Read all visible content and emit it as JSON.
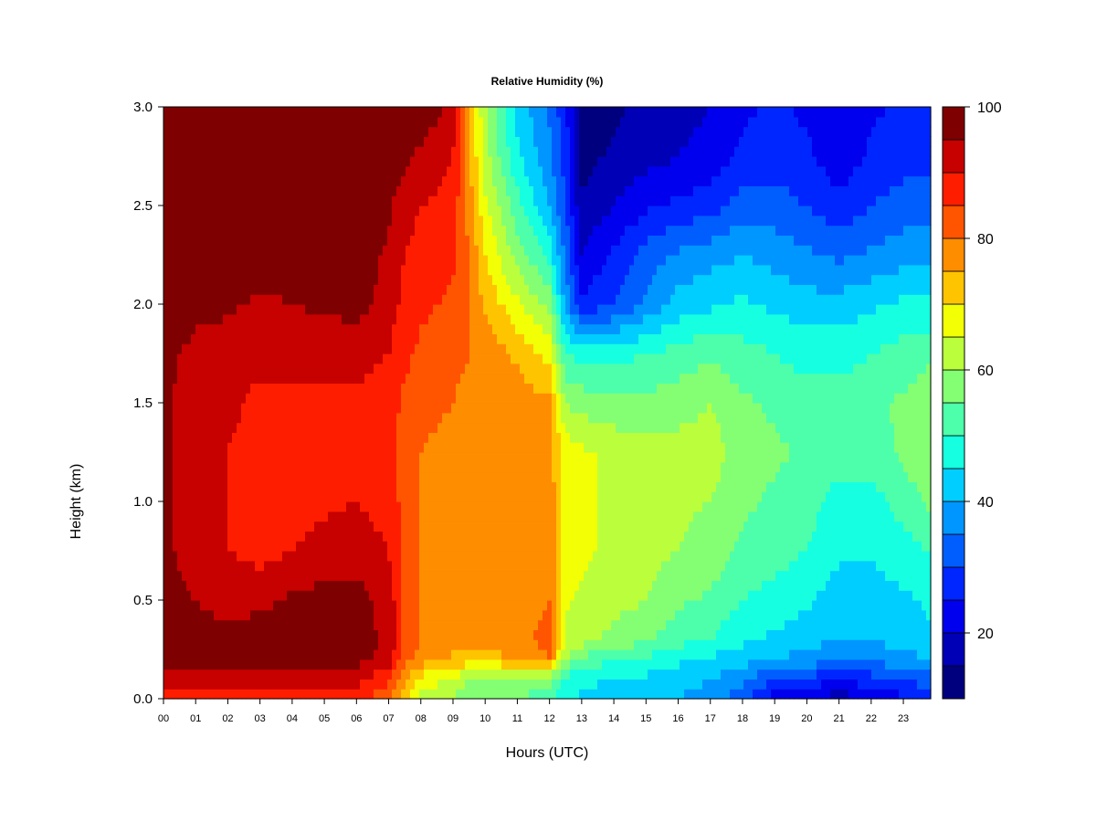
{
  "chart_data": {
    "type": "heatmap",
    "title": "Relative Humidity (%)",
    "xlabel": "Hours (UTC)",
    "ylabel": "Height (km)",
    "x_ticks": [
      "00",
      "01",
      "02",
      "03",
      "04",
      "05",
      "06",
      "07",
      "08",
      "09",
      "10",
      "11",
      "12",
      "13",
      "14",
      "15",
      "16",
      "17",
      "18",
      "19",
      "20",
      "21",
      "22",
      "23"
    ],
    "xlim": [
      0,
      23.85
    ],
    "y_ticks": [
      "0.0",
      "0.5",
      "1.0",
      "1.5",
      "2.0",
      "2.5",
      "3.0"
    ],
    "ylim": [
      0,
      3.0
    ],
    "x_hours": [
      0,
      1,
      2,
      3,
      4,
      5,
      6,
      7,
      7.5,
      8,
      9,
      9.5,
      10,
      11,
      12,
      12.5,
      13,
      14,
      15,
      16,
      17,
      18,
      19,
      20,
      21,
      22,
      23,
      23.8
    ],
    "heights_km": [
      0.0,
      0.1,
      0.2,
      0.3,
      0.5,
      0.75,
      1.0,
      1.25,
      1.5,
      1.75,
      2.0,
      2.25,
      2.5,
      2.75,
      3.0
    ],
    "rh_percent": [
      [
        88,
        89,
        88,
        88,
        89,
        88,
        88,
        80,
        72,
        64,
        60,
        57,
        56,
        55,
        52,
        46,
        44,
        43,
        42,
        40,
        38,
        32,
        22,
        20,
        17,
        20,
        24,
        28
      ],
      [
        92,
        93,
        92,
        92,
        93,
        92,
        92,
        86,
        76,
        68,
        64,
        60,
        59,
        58,
        57,
        48,
        46,
        45,
        44,
        42,
        40,
        36,
        30,
        28,
        26,
        28,
        30,
        32
      ],
      [
        97,
        97,
        97,
        97,
        97,
        97,
        97,
        93,
        82,
        78,
        74,
        72,
        72,
        76,
        80,
        60,
        54,
        50,
        49,
        46,
        44,
        42,
        40,
        38,
        36,
        36,
        38,
        40
      ],
      [
        97,
        96,
        96,
        97,
        97,
        97,
        97,
        94,
        84,
        80,
        77,
        76,
        76,
        78,
        82,
        64,
        62,
        58,
        56,
        52,
        50,
        46,
        44,
        42,
        40,
        40,
        42,
        44
      ],
      [
        97,
        95,
        94,
        94,
        96,
        97,
        97,
        93,
        84,
        80,
        78,
        77,
        77,
        78,
        80,
        66,
        64,
        62,
        60,
        56,
        54,
        50,
        48,
        46,
        42,
        42,
        44,
        46
      ],
      [
        96,
        93,
        90,
        88,
        90,
        92,
        93,
        90,
        84,
        80,
        78,
        77,
        77,
        78,
        79,
        67,
        66,
        64,
        62,
        60,
        58,
        54,
        52,
        50,
        46,
        46,
        48,
        50
      ],
      [
        96,
        93,
        90,
        88,
        88,
        89,
        90,
        88,
        83,
        80,
        78,
        77,
        77,
        77,
        78,
        68,
        66,
        64,
        62,
        61,
        60,
        56,
        54,
        52,
        48,
        48,
        52,
        56
      ],
      [
        96,
        92,
        90,
        88,
        88,
        88,
        89,
        87,
        83,
        80,
        78,
        77,
        77,
        77,
        77,
        68,
        66,
        64,
        62,
        62,
        62,
        58,
        56,
        54,
        52,
        52,
        56,
        60
      ],
      [
        96,
        92,
        91,
        89,
        89,
        89,
        89,
        87,
        84,
        82,
        80,
        78,
        78,
        78,
        76,
        60,
        58,
        56,
        56,
        58,
        60,
        56,
        54,
        52,
        52,
        54,
        56,
        58
      ],
      [
        97,
        93,
        92,
        91,
        91,
        91,
        92,
        90,
        86,
        84,
        82,
        80,
        78,
        74,
        68,
        50,
        48,
        48,
        50,
        52,
        54,
        52,
        50,
        48,
        48,
        50,
        52,
        54
      ],
      [
        100,
        97,
        96,
        94,
        95,
        96,
        97,
        93,
        88,
        86,
        84,
        80,
        74,
        66,
        58,
        38,
        26,
        30,
        36,
        42,
        44,
        46,
        44,
        42,
        42,
        44,
        46,
        46
      ],
      [
        100,
        100,
        100,
        98,
        98,
        98,
        98,
        94,
        90,
        88,
        86,
        80,
        70,
        58,
        48,
        34,
        20,
        26,
        32,
        36,
        38,
        40,
        38,
        36,
        34,
        36,
        38,
        38
      ],
      [
        100,
        100,
        100,
        100,
        100,
        100,
        100,
        96,
        92,
        90,
        88,
        78,
        66,
        52,
        40,
        30,
        16,
        20,
        24,
        26,
        28,
        32,
        32,
        30,
        26,
        30,
        32,
        32
      ],
      [
        100,
        100,
        100,
        100,
        100,
        100,
        100,
        98,
        96,
        94,
        90,
        76,
        62,
        46,
        36,
        28,
        13,
        16,
        18,
        20,
        22,
        26,
        28,
        26,
        22,
        26,
        28,
        28
      ],
      [
        100,
        100,
        100,
        100,
        100,
        100,
        100,
        100,
        100,
        98,
        94,
        78,
        60,
        44,
        34,
        26,
        12,
        14,
        16,
        18,
        20,
        24,
        26,
        24,
        20,
        24,
        26,
        26
      ]
    ],
    "colorbar": {
      "min": 10,
      "max": 100,
      "ticks": [
        20,
        40,
        60,
        80,
        100
      ],
      "levels": [
        10,
        15,
        20,
        25,
        30,
        35,
        40,
        45,
        50,
        55,
        60,
        65,
        70,
        75,
        80,
        85,
        90,
        95,
        100
      ],
      "colors": [
        "#00007f",
        "#0000b7",
        "#0000ee",
        "#0026ff",
        "#005eff",
        "#0096ff",
        "#00ceff",
        "#16ffe1",
        "#4dffaa",
        "#84ff73",
        "#bbff3c",
        "#f3ff04",
        "#ffc400",
        "#ff8d00",
        "#ff5500",
        "#ff1d00",
        "#c70000",
        "#7f0000"
      ]
    }
  }
}
